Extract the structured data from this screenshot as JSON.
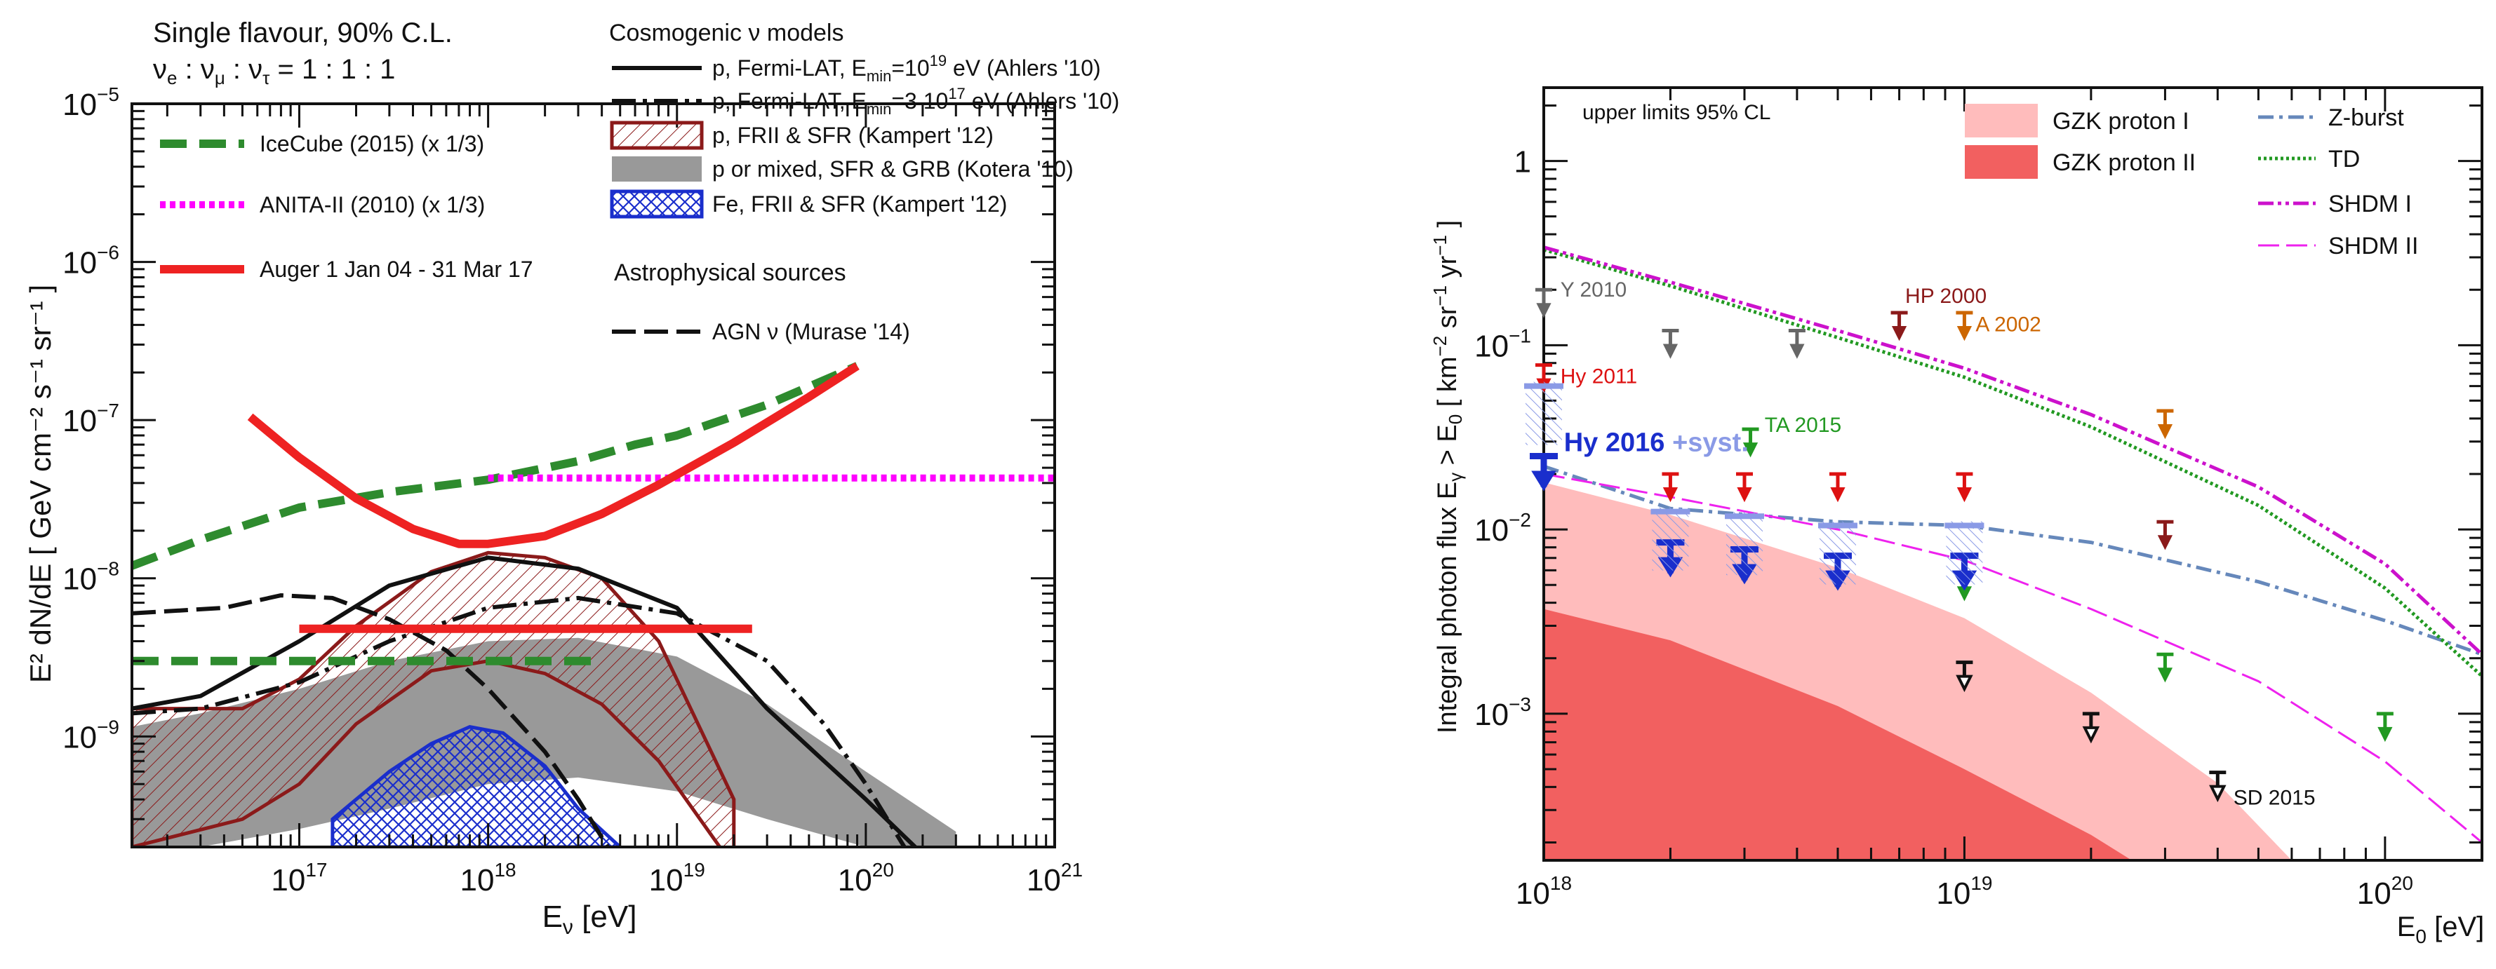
{
  "chart_data": [
    {
      "type": "line",
      "id": "left",
      "xscale": "log",
      "yscale": "log",
      "xlim": [
        1.3e+16,
        1e+21
      ],
      "ylim": [
        2e-10,
        1e-05
      ],
      "xlabel_main": "E",
      "xlabel_sub": "ν",
      "xlabel_unit": " [eV]",
      "ylabel_text": "E² dN/dE  [ GeV cm⁻² s⁻¹ sr⁻¹ ]",
      "xticks": [
        {
          "v": 1e+17,
          "b": "10",
          "e": "17"
        },
        {
          "v": 1e+18,
          "b": "10",
          "e": "18"
        },
        {
          "v": 1e+19,
          "b": "10",
          "e": "19"
        },
        {
          "v": 1e+20,
          "b": "10",
          "e": "20"
        },
        {
          "v": 1e+21,
          "b": "10",
          "e": "21"
        }
      ],
      "yticks": [
        {
          "v": 1e-09,
          "b": "10",
          "e": "−9"
        },
        {
          "v": 1e-08,
          "b": "10",
          "e": "−8"
        },
        {
          "v": 1e-07,
          "b": "10",
          "e": "−7"
        },
        {
          "v": 1e-06,
          "b": "10",
          "e": "−6"
        },
        {
          "v": 1e-05,
          "b": "10",
          "e": "−5"
        }
      ],
      "header_line1": "Single flavour, 90% C.L.",
      "header_line2": "ν",
      "header_line2_sub": [
        "e",
        "μ",
        "τ"
      ],
      "header_ratio": " = 1 : 1 : 1",
      "legend_title_cosmo": "Cosmogenic  ν models",
      "legend_title_astro": "Astrophysical sources",
      "legend": [
        {
          "name": "IceCube (2015) (x 1/3)",
          "color": "#2e8b2e",
          "style": "dash"
        },
        {
          "name": "ANITA-II (2010) (x 1/3)",
          "color": "#ff00ff",
          "style": "dot"
        },
        {
          "name": "Auger 1 Jan 04 - 31 Mar 17",
          "color": "#ee2222",
          "style": "solid"
        },
        {
          "name": "p, Fermi-LAT, E",
          "sub": "min",
          "tail": "=10",
          "sup": "19",
          "end": " eV (Ahlers '10)",
          "color": "#111111",
          "style": "solid"
        },
        {
          "name": "p, Fermi-LAT, E",
          "sub": "min",
          "tail": "=3 10",
          "sup": "17",
          "end": " eV (Ahlers '10)",
          "color": "#111111",
          "style": "dashdot"
        },
        {
          "name": "p, FRII & SFR (Kampert '12)",
          "color": "#8b1a1a",
          "style": "hatch"
        },
        {
          "name": "p or mixed, SFR & GRB (Kotera '10)",
          "color": "#999999",
          "style": "fill"
        },
        {
          "name": "Fe, FRII & SFR (Kampert '12)",
          "color": "#1a2ecc",
          "style": "cross"
        },
        {
          "name": "AGN ν (Murase '14)",
          "color": "#111111",
          "style": "longdash"
        }
      ],
      "series": [
        {
          "name": "Auger differential",
          "x": [
            5.5e+16,
            1e+17,
            2e+17,
            4e+17,
            7e+17,
            1e+18,
            2e+18,
            4e+18,
            8e+18,
            2e+19,
            5e+19,
            9e+19
          ],
          "y": [
            1.05e-07,
            5.8e-08,
            3.2e-08,
            2.05e-08,
            1.65e-08,
            1.65e-08,
            1.85e-08,
            2.55e-08,
            3.9e-08,
            7.2e-08,
            1.4e-07,
            2.2e-07
          ]
        },
        {
          "name": "Auger integrated",
          "x": [
            1e+17,
            2.5e+19
          ],
          "y": [
            4.8e-09,
            4.8e-09
          ]
        },
        {
          "name": "IceCube (x1/3) differential",
          "x": [
            1.3e+16,
            3e+16,
            1e+17,
            3e+17,
            1e+18,
            3e+18,
            6e+18,
            1e+19,
            3e+19,
            9e+19
          ],
          "y": [
            1.2e-08,
            1.75e-08,
            2.8e-08,
            3.5e-08,
            4.2e-08,
            5.5e-08,
            7e-08,
            8e-08,
            1.25e-07,
            2.2e-07
          ]
        },
        {
          "name": "IceCube (x1/3) integrated",
          "x": [
            1.3e+16,
            4e+18
          ],
          "y": [
            3e-09,
            3e-09
          ]
        },
        {
          "name": "ANITA-II (x1/3)",
          "x": [
            1e+18,
            1e+21
          ],
          "y": [
            4.3e-08,
            4.3e-08
          ]
        },
        {
          "name": "Ahlers Emin=1e19",
          "x": [
            1.3e+16,
            3e+16,
            1e+17,
            3e+17,
            1e+18,
            3e+18,
            1e+19,
            3e+19,
            6e+19,
            1e+20,
            2e+20
          ],
          "y": [
            1.5e-09,
            1.8e-09,
            4e-09,
            9e-09,
            1.35e-08,
            1.15e-08,
            6.5e-09,
            1.5e-09,
            7e-10,
            4e-10,
            1.8e-10
          ]
        },
        {
          "name": "Ahlers Emin=3e17",
          "x": [
            1.3e+16,
            3e+16,
            1e+17,
            3e+17,
            1e+18,
            3e+18,
            1e+19,
            3e+19,
            6e+19,
            1e+20,
            1.6e+20
          ],
          "y": [
            1.4e-09,
            1.5e-09,
            2.2e-09,
            4e-09,
            6.5e-09,
            7.5e-09,
            6e-09,
            3e-09,
            1.2e-09,
            5e-10,
            2e-10
          ]
        },
        {
          "name": "AGN nu (Murase '14)",
          "x": [
            1.3e+16,
            4e+16,
            8e+16,
            1.5e+17,
            3e+17,
            6e+17,
            1e+18,
            2e+18,
            3e+18,
            5e+18
          ],
          "y": [
            6e-09,
            6.5e-09,
            7.8e-09,
            7.5e-09,
            5.5e-09,
            3.5e-09,
            2e-09,
            8e-10,
            4e-10,
            1.5e-10
          ]
        },
        {
          "name": "p, FRII & SFR band upper",
          "x": [
            1.3e+16,
            5e+16,
            1e+17,
            2e+17,
            5e+17,
            1e+18,
            2e+18,
            4e+18,
            8e+18,
            2e+19
          ],
          "y": [
            1.5e-09,
            1.5e-09,
            2.3e-09,
            5e-09,
            1.1e-08,
            1.45e-08,
            1.35e-08,
            1e-08,
            4e-09,
            4e-10
          ]
        },
        {
          "name": "p, FRII & SFR band lower",
          "x": [
            1.3e+16,
            5e+16,
            1e+17,
            2e+17,
            5e+17,
            1e+18,
            2e+18,
            4e+18,
            8e+18,
            2e+19
          ],
          "y": [
            2e-10,
            3e-10,
            5e-10,
            1.2e-09,
            2.6e-09,
            3e-09,
            2.5e-09,
            1.6e-09,
            7e-10,
            1.5e-10
          ]
        },
        {
          "name": "Kotera band upper",
          "x": [
            1.3e+16,
            3e+16,
            1e+17,
            3e+17,
            1e+18,
            3e+18,
            1e+19,
            3e+19,
            1e+20,
            3e+20
          ],
          "y": [
            1.15e-09,
            1.4e-09,
            2e-09,
            3e-09,
            4e-09,
            4.2e-09,
            3.2e-09,
            1.6e-09,
            6e-10,
            2.5e-10
          ]
        },
        {
          "name": "Kotera band lower",
          "x": [
            1.3e+16,
            3e+16,
            1e+17,
            3e+17,
            1e+18,
            3e+18,
            1e+19,
            3e+19,
            1e+20,
            3e+20
          ],
          "y": [
            2e-10,
            2e-10,
            2.6e-10,
            3.5e-10,
            5e-10,
            5.5e-10,
            4.5e-10,
            3e-10,
            2e-10,
            2e-10
          ]
        },
        {
          "name": "Fe, FRII & SFR upper",
          "x": [
            1.5e+17,
            3e+17,
            5e+17,
            8e+17,
            1.2e+18,
            2e+18,
            3e+18,
            5e+18
          ],
          "y": [
            3e-10,
            6e-10,
            9e-10,
            1.15e-09,
            1.05e-09,
            6.5e-10,
            3.5e-10,
            2e-10
          ]
        }
      ]
    },
    {
      "type": "line",
      "id": "right",
      "xscale": "log",
      "yscale": "log",
      "xlim": [
        1e+18,
        1.7e+20
      ],
      "ylim": [
        0.00016,
        2.5
      ],
      "xlabel_main": "E",
      "xlabel_sub": "0",
      "xlabel_unit": " [eV]",
      "ylabel_main": "Integral photon flux E",
      "ylabel_sub": "γ",
      "ylabel_mid": " > E",
      "ylabel_sub2": "0",
      "ylabel_unit": " [ km",
      "ylabel_exp1": "−2",
      "ylabel_u2": " sr",
      "ylabel_exp2": "−1",
      "ylabel_u3": " yr",
      "ylabel_exp3": "−1",
      "ylabel_end": " ]",
      "xticks": [
        {
          "v": 1e+18,
          "b": "10",
          "e": "18"
        },
        {
          "v": 1e+19,
          "b": "10",
          "e": "19"
        },
        {
          "v": 1e+20,
          "b": "10",
          "e": "20"
        }
      ],
      "yticks": [
        {
          "v": 0.001,
          "b": "10",
          "e": "−3"
        },
        {
          "v": 0.01,
          "b": "10",
          "e": "−2"
        },
        {
          "v": 0.1,
          "b": "10",
          "e": "−1"
        },
        {
          "v": 1,
          "b": "1",
          "e": ""
        }
      ],
      "note": "upper limits 95% CL",
      "legend": [
        {
          "name": "GZK proton I",
          "color": "#ffbcbc",
          "style": "box"
        },
        {
          "name": "GZK proton II",
          "color": "#f26060",
          "style": "box"
        },
        {
          "name": "Z-burst",
          "color": "#6688bb",
          "style": "dashdot"
        },
        {
          "name": "TD",
          "color": "#229922",
          "style": "dot"
        },
        {
          "name": "SHDM I",
          "color": "#cc11cc",
          "style": "dashdot"
        },
        {
          "name": "SHDM II",
          "color": "#ee22ee",
          "style": "longdash"
        }
      ],
      "labels": [
        {
          "text": "Y 2010",
          "color": "#666666",
          "x": 1.03e+18,
          "y": 0.2
        },
        {
          "text": "Hy 2011",
          "color": "#dd1111",
          "x": 1.03e+18,
          "y": 0.068
        },
        {
          "text": "HP 2000",
          "color": "#8b1a1a",
          "x": 6.8e+18,
          "y": 0.185
        },
        {
          "text": "A 2002",
          "color": "#cc6600",
          "x": 1e+19,
          "y": 0.13
        },
        {
          "text": "TA 2015",
          "color": "#229922",
          "x": 3.15e+18,
          "y": 0.037
        },
        {
          "text": "Hy 2016",
          "color": "#1a2ecc",
          "x": 1.05e+18,
          "y": 0.029
        },
        {
          "text": "+syst.",
          "color": "#8a9ae6",
          "x": 1.9e+18,
          "y": 0.029
        },
        {
          "text": "SD 2015",
          "color": "#111111",
          "x": 4.1e+19,
          "y": 0.00035
        }
      ],
      "limits": [
        {
          "set": "Y 2010",
          "color": "#666666",
          "x": [
            1e+18,
            2e+18,
            4e+18
          ],
          "y": [
            0.2,
            0.12,
            0.12
          ]
        },
        {
          "set": "Hy 2011",
          "color": "#dd1111",
          "x": [
            1e+18,
            2e+18,
            3e+18,
            5e+18,
            1e+19
          ],
          "y": [
            0.078,
            0.02,
            0.02,
            0.02,
            0.02
          ]
        },
        {
          "set": "HP 2000",
          "color": "#8b1a1a",
          "x": [
            7e+18,
            3e+19
          ],
          "y": [
            0.15,
            0.011
          ]
        },
        {
          "set": "A 2002",
          "color": "#cc6600",
          "x": [
            1e+19,
            3e+19
          ],
          "y": [
            0.15,
            0.044
          ]
        },
        {
          "set": "TA 2015",
          "color": "#229922",
          "x": [
            3.1e+18,
            1e+19,
            3e+19,
            1e+20
          ],
          "y": [
            0.035,
            0.0058,
            0.0021,
            0.001
          ]
        },
        {
          "set": "Hy 2016",
          "color": "#1a2ecc",
          "x": [
            1e+18,
            2e+18,
            3e+18,
            5e+18,
            1e+19
          ],
          "y": [
            0.025,
            0.0085,
            0.0078,
            0.0072,
            0.0072
          ]
        },
        {
          "set": "Hy 2016 +syst.",
          "color": "#8a9ae6",
          "x": [
            1e+18,
            2e+18,
            3e+18,
            5e+18,
            1e+19
          ],
          "y": [
            0.06,
            0.0125,
            0.0118,
            0.0105,
            0.0105
          ]
        },
        {
          "set": "SD 2015",
          "color": "#111111",
          "x": [
            1e+19,
            2e+19,
            4e+19
          ],
          "y": [
            0.0019,
            0.001,
            0.00048
          ]
        }
      ],
      "series": [
        {
          "name": "GZK proton I upper",
          "x": [
            1e+18,
            2e+18,
            5e+18,
            1e+19,
            2e+19,
            4e+19,
            6e+19
          ],
          "y": [
            0.018,
            0.012,
            0.0062,
            0.0033,
            0.0013,
            0.00042,
            0.00016
          ]
        },
        {
          "name": "GZK proton II upper",
          "x": [
            1e+18,
            2e+18,
            5e+18,
            1e+19,
            2e+19,
            2.5e+19
          ],
          "y": [
            0.0037,
            0.0025,
            0.0011,
            0.0005,
            0.00022,
            0.00016
          ]
        },
        {
          "name": "Z-burst",
          "x": [
            1e+18,
            2e+18,
            5e+18,
            1e+19,
            2e+19,
            5e+19,
            1e+20,
            1.7e+20
          ],
          "y": [
            0.022,
            0.013,
            0.011,
            0.0105,
            0.0085,
            0.0052,
            0.0032,
            0.0021
          ]
        },
        {
          "name": "TD",
          "x": [
            1e+18,
            2e+18,
            5e+18,
            1e+19,
            2e+19,
            5e+19,
            1e+20,
            1.7e+20
          ],
          "y": [
            0.33,
            0.21,
            0.11,
            0.067,
            0.036,
            0.0135,
            0.0048,
            0.0016
          ]
        },
        {
          "name": "SHDM I",
          "x": [
            1e+18,
            2e+18,
            5e+18,
            1e+19,
            2e+19,
            5e+19,
            1e+20,
            1.7e+20
          ],
          "y": [
            0.34,
            0.22,
            0.12,
            0.075,
            0.042,
            0.017,
            0.0065,
            0.0021
          ]
        },
        {
          "name": "SHDM II",
          "x": [
            1e+18,
            2e+18,
            5e+18,
            1e+19,
            2e+19,
            5e+19,
            1e+20,
            1.7e+20
          ],
          "y": [
            0.02,
            0.015,
            0.01,
            0.0068,
            0.0037,
            0.0015,
            0.00055,
            0.0002
          ]
        }
      ]
    }
  ]
}
